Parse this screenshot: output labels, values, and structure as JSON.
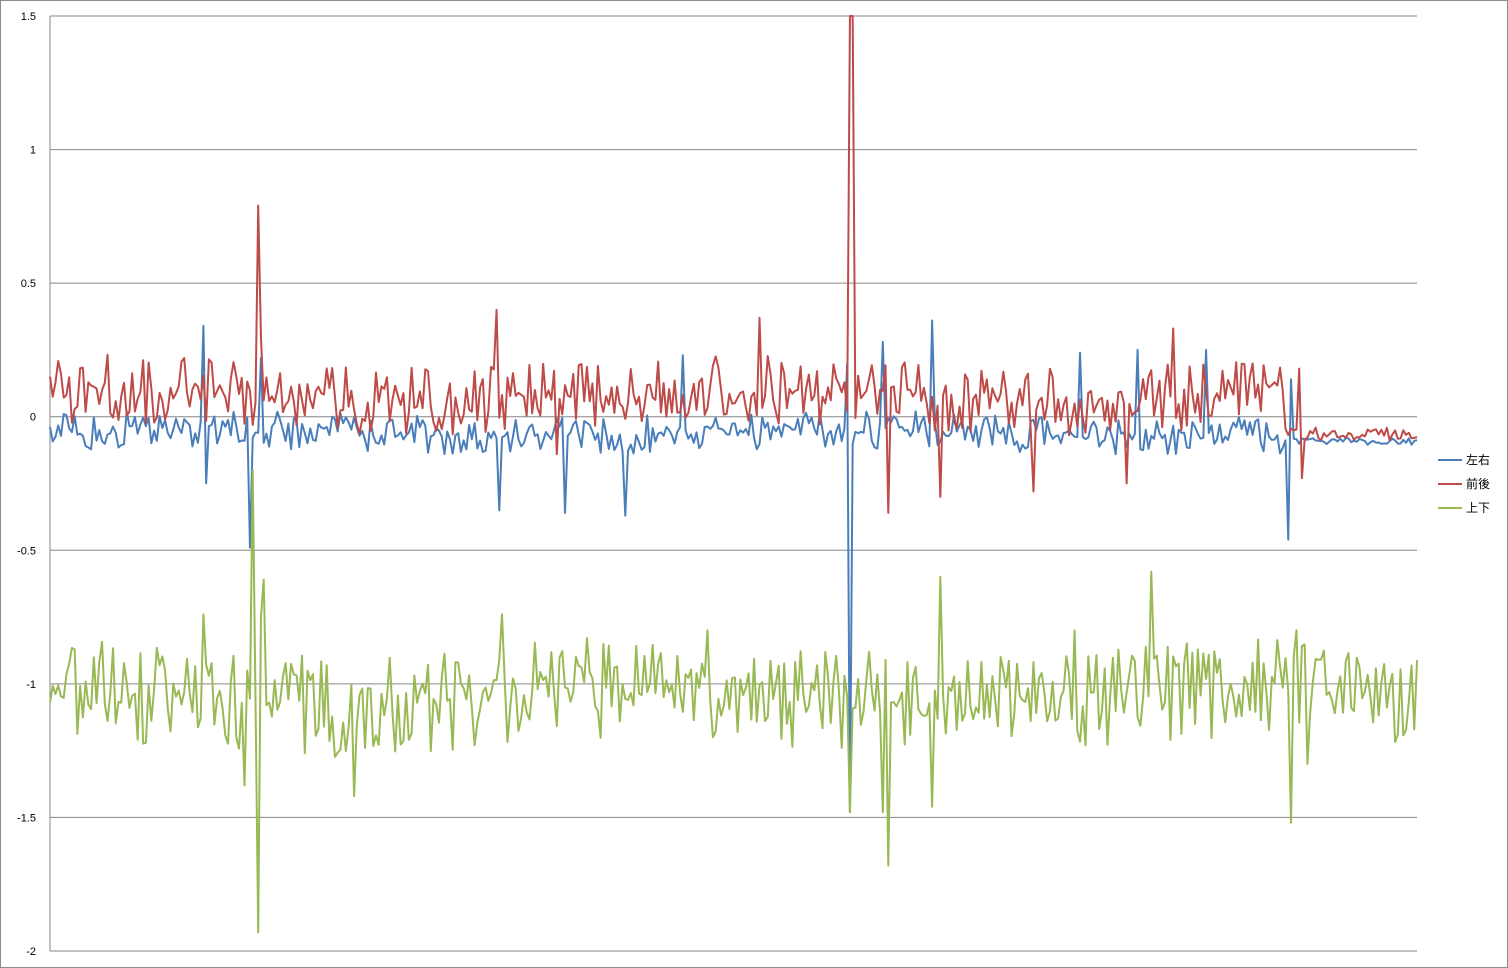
{
  "chart_data": {
    "type": "line",
    "ylim": [
      -2,
      1.5
    ],
    "yticks": [
      1.5,
      1,
      0.5,
      0,
      -0.5,
      -1,
      -1.5,
      -2
    ],
    "ytick_labels": [
      "1.5",
      "1",
      "0.5",
      "0",
      "-0.5",
      "-1",
      "-1.5",
      "-2"
    ],
    "grid": true,
    "legend_position": "right",
    "point_count": 500,
    "series": [
      {
        "name": "左右",
        "color": "#4a7ebb",
        "baseline": -0.06,
        "noise": 0.045,
        "spikes": [
          {
            "index": 56,
            "value": 0.34
          },
          {
            "index": 57,
            "value": -0.25
          },
          {
            "index": 73,
            "value": -0.49
          },
          {
            "index": 77,
            "value": 0.22
          },
          {
            "index": 164,
            "value": -0.35
          },
          {
            "index": 188,
            "value": -0.36
          },
          {
            "index": 210,
            "value": -0.37
          },
          {
            "index": 231,
            "value": 0.23
          },
          {
            "index": 291,
            "value": 0.2
          },
          {
            "index": 292,
            "value": -1.48
          },
          {
            "index": 304,
            "value": 0.28
          },
          {
            "index": 322,
            "value": 0.36
          },
          {
            "index": 376,
            "value": 0.24
          },
          {
            "index": 397,
            "value": 0.25
          },
          {
            "index": 422,
            "value": 0.25
          },
          {
            "index": 452,
            "value": -0.46
          },
          {
            "index": 453,
            "value": 0.14
          }
        ]
      },
      {
        "name": "前後",
        "color": "#be4b48",
        "baseline": 0.08,
        "noise": 0.08,
        "spikes": [
          {
            "index": 76,
            "value": 0.79
          },
          {
            "index": 77,
            "value": 0.3
          },
          {
            "index": 163,
            "value": 0.4
          },
          {
            "index": 185,
            "value": -0.14
          },
          {
            "index": 259,
            "value": 0.37
          },
          {
            "index": 292,
            "value": 1.5
          },
          {
            "index": 293,
            "value": 1.5
          },
          {
            "index": 306,
            "value": -0.36
          },
          {
            "index": 325,
            "value": -0.3
          },
          {
            "index": 359,
            "value": -0.28
          },
          {
            "index": 393,
            "value": -0.25
          },
          {
            "index": 410,
            "value": 0.33
          },
          {
            "index": 456,
            "value": 0.18
          },
          {
            "index": 457,
            "value": -0.23
          }
        ]
      },
      {
        "name": "上下",
        "color": "#98b954",
        "baseline": -1.05,
        "noise": 0.12,
        "spikes": [
          {
            "index": 71,
            "value": -1.38
          },
          {
            "index": 72,
            "value": -0.95
          },
          {
            "index": 74,
            "value": -0.2
          },
          {
            "index": 76,
            "value": -1.93
          },
          {
            "index": 77,
            "value": -0.75
          },
          {
            "index": 78,
            "value": -0.61
          },
          {
            "index": 56,
            "value": -0.74
          },
          {
            "index": 111,
            "value": -1.42
          },
          {
            "index": 165,
            "value": -0.74
          },
          {
            "index": 240,
            "value": -0.8
          },
          {
            "index": 292,
            "value": -1.48
          },
          {
            "index": 299,
            "value": -0.88
          },
          {
            "index": 304,
            "value": -1.48
          },
          {
            "index": 306,
            "value": -1.68
          },
          {
            "index": 322,
            "value": -1.46
          },
          {
            "index": 325,
            "value": -0.6
          },
          {
            "index": 374,
            "value": -0.8
          },
          {
            "index": 402,
            "value": -0.58
          },
          {
            "index": 453,
            "value": -1.52
          },
          {
            "index": 455,
            "value": -0.8
          },
          {
            "index": 459,
            "value": -1.3
          }
        ]
      }
    ]
  }
}
